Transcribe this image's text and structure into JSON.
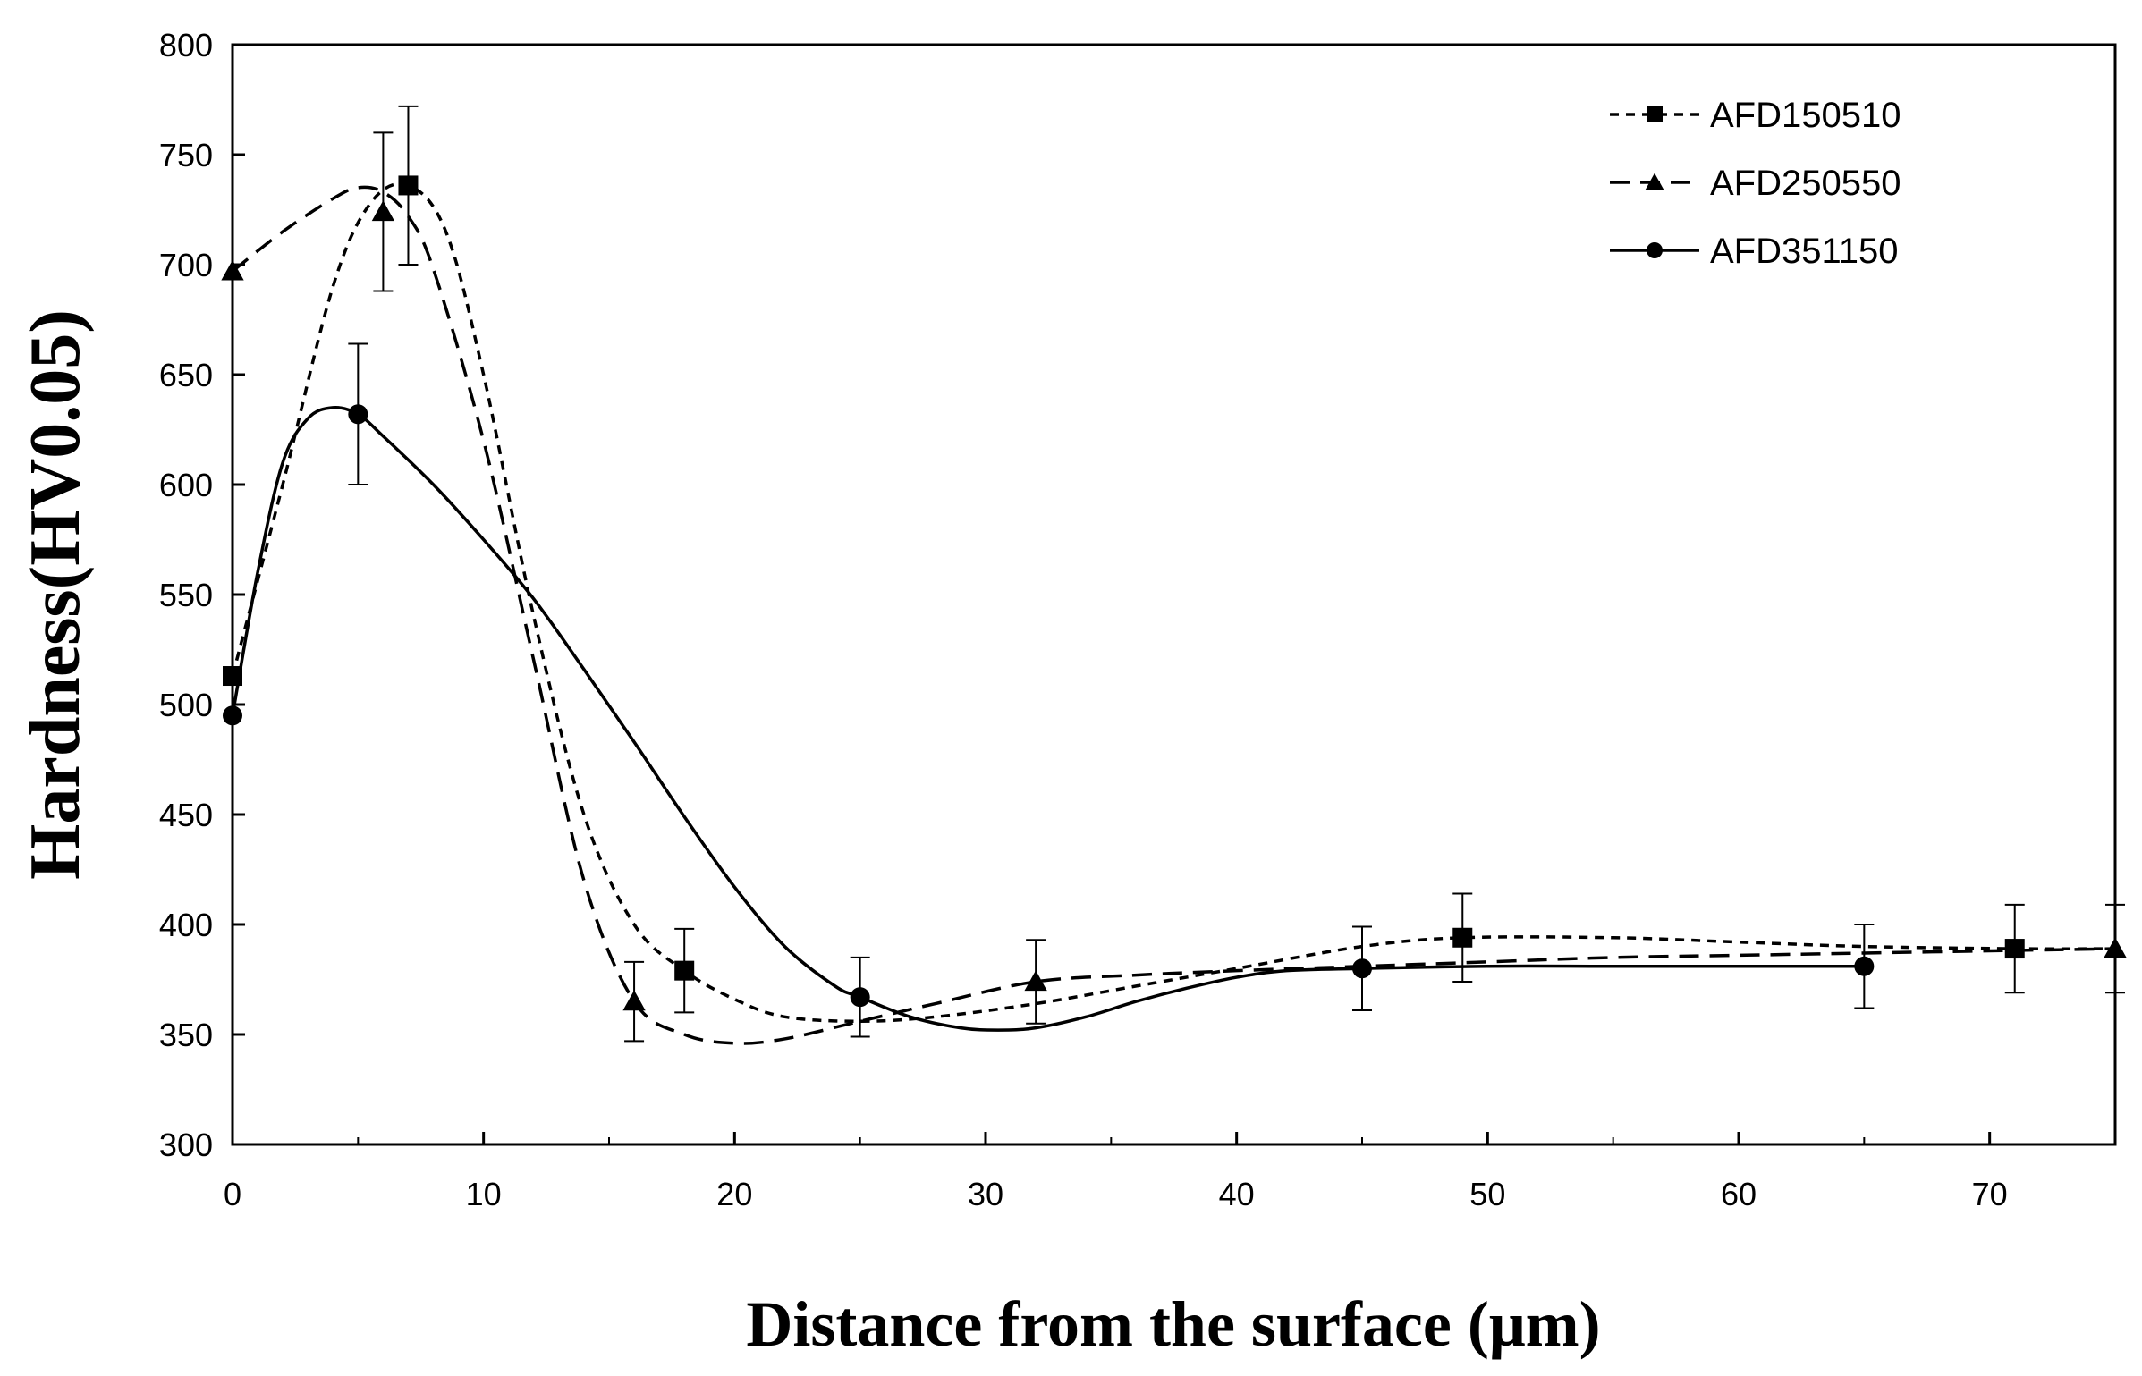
{
  "chart_data": {
    "type": "line",
    "title": "",
    "xlabel": "Distance from the surface (μm)",
    "ylabel": "Hardness(HV0.05)",
    "xlim": [
      0,
      75
    ],
    "ylim": [
      300,
      800
    ],
    "xticks": [
      0,
      10,
      20,
      30,
      40,
      50,
      60,
      70
    ],
    "yticks": [
      300,
      350,
      400,
      450,
      500,
      550,
      600,
      650,
      700,
      750,
      800
    ],
    "legend_position": "top-right",
    "grid": false,
    "series": [
      {
        "name": "AFD150510",
        "marker": "square",
        "line_style": "short-dash",
        "x": [
          0,
          7,
          18,
          49,
          71
        ],
        "y": [
          513,
          736,
          379,
          394,
          389
        ],
        "error": [
          0,
          36,
          19,
          20,
          20
        ],
        "curve_x": [
          0,
          2,
          4,
          5.5,
          7,
          8.5,
          10,
          12,
          14,
          16,
          18,
          20,
          22,
          25,
          28,
          32,
          36,
          40,
          45,
          49,
          55,
          60,
          65,
          71,
          75
        ],
        "curve_y": [
          513,
          600,
          690,
          728,
          736,
          715,
          650,
          540,
          450,
          400,
          379,
          366,
          358,
          356,
          358,
          364,
          372,
          380,
          390,
          394,
          394,
          392,
          390,
          389,
          389
        ]
      },
      {
        "name": "AFD250550",
        "marker": "triangle",
        "line_style": "long-dash",
        "x": [
          0,
          6,
          16,
          32,
          75
        ],
        "y": [
          697,
          724,
          365,
          374,
          389
        ],
        "error": [
          0,
          36,
          18,
          19,
          20
        ],
        "curve_x": [
          0,
          2,
          4,
          5,
          6,
          7,
          8,
          10,
          12,
          14,
          16,
          18,
          20,
          22,
          25,
          28,
          32,
          36,
          40,
          45,
          50,
          55,
          60,
          65,
          70,
          75
        ],
        "curve_y": [
          697,
          715,
          730,
          735,
          733,
          722,
          698,
          620,
          520,
          420,
          365,
          350,
          346,
          348,
          356,
          364,
          374,
          377,
          379,
          381,
          383,
          385,
          386,
          387,
          388,
          389
        ]
      },
      {
        "name": "AFD351150",
        "marker": "circle",
        "line_style": "solid",
        "x": [
          0,
          5,
          25,
          45,
          65
        ],
        "y": [
          495,
          632,
          367,
          380,
          381
        ],
        "error": [
          0,
          32,
          18,
          19,
          19
        ],
        "curve_x": [
          0,
          1,
          2,
          3,
          4,
          5,
          6,
          8,
          10,
          12,
          14,
          16,
          18,
          20,
          22,
          24,
          25,
          27,
          29,
          30.5,
          32,
          34,
          36,
          38,
          40,
          42,
          45,
          50,
          55,
          60,
          65
        ],
        "curve_y": [
          495,
          560,
          610,
          630,
          635,
          632,
          622,
          600,
          575,
          548,
          516,
          483,
          449,
          417,
          390,
          372,
          367,
          358,
          353,
          352,
          353,
          358,
          365,
          371,
          376,
          379,
          380,
          381,
          381,
          381,
          381
        ]
      }
    ]
  }
}
